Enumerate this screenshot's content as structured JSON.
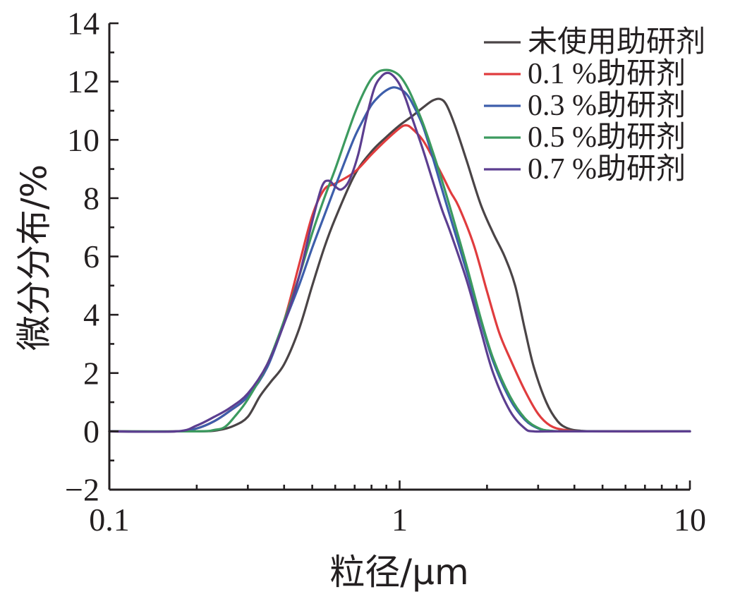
{
  "chart_data": {
    "type": "line",
    "xlabel": "粒径/μm",
    "ylabel": "微分分布/%",
    "xscale": "log",
    "xlim": [
      0.1,
      10
    ],
    "ylim": [
      -2,
      14
    ],
    "xticks": [
      {
        "value": 0.1,
        "label": "0.1"
      },
      {
        "value": 1,
        "label": "1"
      },
      {
        "value": 10,
        "label": "10"
      }
    ],
    "yticks": [
      {
        "value": -2,
        "label": "−2"
      },
      {
        "value": 0,
        "label": "0"
      },
      {
        "value": 2,
        "label": "2"
      },
      {
        "value": 4,
        "label": "4"
      },
      {
        "value": 6,
        "label": "6"
      },
      {
        "value": 8,
        "label": "8"
      },
      {
        "value": 10,
        "label": "10"
      },
      {
        "value": 12,
        "label": "12"
      },
      {
        "value": 14,
        "label": "14"
      }
    ],
    "grid": false,
    "legend_position": "top-right",
    "series": [
      {
        "name": "未使用助研剂",
        "color": "#4a4446",
        "x": [
          0.1,
          0.2,
          0.24,
          0.27,
          0.3,
          0.33,
          0.36,
          0.4,
          0.45,
          0.5,
          0.55,
          0.6,
          0.7,
          0.8,
          0.9,
          1.0,
          1.1,
          1.2,
          1.3,
          1.38,
          1.45,
          1.55,
          1.7,
          1.9,
          2.1,
          2.3,
          2.5,
          2.7,
          2.9,
          3.2,
          3.5,
          3.8,
          4.2,
          5,
          10
        ],
        "y": [
          0,
          0,
          0.05,
          0.2,
          0.5,
          1.2,
          1.7,
          2.3,
          3.5,
          5.0,
          6.3,
          7.3,
          8.8,
          9.6,
          10.1,
          10.5,
          10.8,
          11.1,
          11.35,
          11.4,
          11.2,
          10.5,
          9.3,
          7.8,
          6.8,
          6.0,
          5.0,
          3.5,
          2.2,
          1.0,
          0.35,
          0.1,
          0.02,
          0,
          0
        ]
      },
      {
        "name": "0.1 %助研剂",
        "color": "#e03c3e",
        "x": [
          0.1,
          0.17,
          0.2,
          0.23,
          0.26,
          0.3,
          0.35,
          0.4,
          0.45,
          0.5,
          0.55,
          0.6,
          0.7,
          0.8,
          0.9,
          1.0,
          1.05,
          1.1,
          1.2,
          1.3,
          1.4,
          1.5,
          1.6,
          1.8,
          2.0,
          2.2,
          2.4,
          2.7,
          3.0,
          3.3,
          3.7,
          4.5,
          10
        ],
        "y": [
          0,
          0,
          0.1,
          0.35,
          0.7,
          1.2,
          2.3,
          3.8,
          5.7,
          7.4,
          8.3,
          8.5,
          8.9,
          9.5,
          10.0,
          10.4,
          10.5,
          10.4,
          10.0,
          9.4,
          8.8,
          8.2,
          7.7,
          6.4,
          4.8,
          3.4,
          2.5,
          1.4,
          0.6,
          0.2,
          0.05,
          0,
          0
        ]
      },
      {
        "name": "0.3 %助研剂",
        "color": "#3d5eab",
        "x": [
          0.1,
          0.17,
          0.2,
          0.23,
          0.26,
          0.3,
          0.35,
          0.4,
          0.45,
          0.5,
          0.55,
          0.6,
          0.65,
          0.7,
          0.75,
          0.8,
          0.85,
          0.9,
          0.95,
          1.0,
          1.05,
          1.1,
          1.2,
          1.3,
          1.4,
          1.5,
          1.7,
          1.9,
          2.1,
          2.4,
          2.7,
          3.0,
          3.3,
          4,
          10
        ],
        "y": [
          0,
          0,
          0.1,
          0.35,
          0.7,
          1.2,
          2.2,
          3.7,
          5.0,
          6.3,
          7.4,
          8.4,
          9.3,
          10.1,
          10.7,
          11.2,
          11.5,
          11.7,
          11.8,
          11.75,
          11.6,
          11.3,
          10.5,
          9.4,
          8.3,
          7.3,
          5.5,
          3.8,
          2.4,
          1.1,
          0.4,
          0.1,
          0.02,
          0,
          0
        ]
      },
      {
        "name": "0.5 %助研剂",
        "color": "#3c9a5f",
        "x": [
          0.1,
          0.2,
          0.23,
          0.25,
          0.27,
          0.3,
          0.35,
          0.4,
          0.45,
          0.5,
          0.55,
          0.6,
          0.65,
          0.7,
          0.75,
          0.8,
          0.85,
          0.9,
          0.95,
          1.0,
          1.05,
          1.1,
          1.2,
          1.3,
          1.4,
          1.5,
          1.7,
          1.9,
          2.1,
          2.4,
          2.7,
          3.0,
          3.3,
          4,
          10
        ],
        "y": [
          0,
          0,
          0.05,
          0.15,
          0.5,
          1.1,
          2.3,
          3.8,
          5.3,
          6.8,
          8.0,
          9.0,
          10.0,
          10.9,
          11.6,
          12.1,
          12.35,
          12.4,
          12.35,
          12.2,
          11.9,
          11.5,
          10.6,
          9.6,
          8.6,
          7.6,
          5.7,
          3.9,
          2.5,
          1.2,
          0.45,
          0.12,
          0.02,
          0,
          0
        ]
      },
      {
        "name": "0.7 %助研剂",
        "color": "#5c3e90",
        "x": [
          0.1,
          0.17,
          0.2,
          0.23,
          0.26,
          0.3,
          0.35,
          0.4,
          0.45,
          0.5,
          0.54,
          0.57,
          0.6,
          0.63,
          0.67,
          0.72,
          0.77,
          0.82,
          0.87,
          0.91,
          0.95,
          1.0,
          1.05,
          1.1,
          1.2,
          1.3,
          1.4,
          1.5,
          1.7,
          1.9,
          2.1,
          2.4,
          2.7,
          2.9,
          3.5,
          10
        ],
        "y": [
          0,
          0,
          0.2,
          0.5,
          0.8,
          1.3,
          2.3,
          3.7,
          5.3,
          7.2,
          8.4,
          8.6,
          8.4,
          8.3,
          8.6,
          9.5,
          10.8,
          11.8,
          12.2,
          12.3,
          12.2,
          11.9,
          11.4,
          10.8,
          9.7,
          8.6,
          7.6,
          6.8,
          5.2,
          3.5,
          2.0,
          0.7,
          0.1,
          0,
          0,
          0
        ]
      }
    ]
  }
}
